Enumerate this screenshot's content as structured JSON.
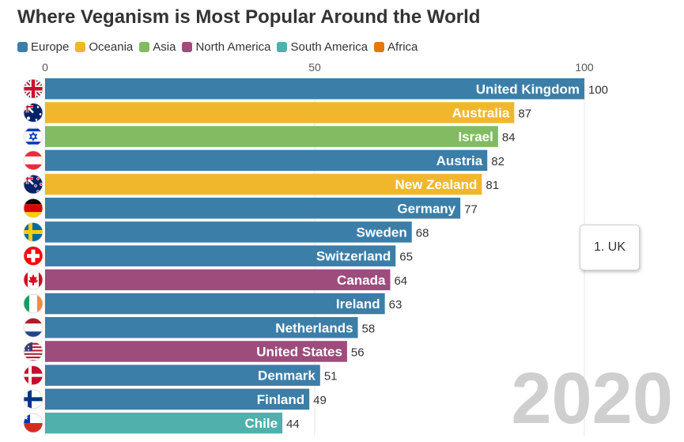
{
  "colors": {
    "Europe": "#3b7ea8",
    "Oceania": "#f1b72c",
    "Asia": "#82bb61",
    "North America": "#9e4c7c",
    "South America": "#4fb0ac",
    "Africa": "#e2780d"
  },
  "tooltip": "1. UK",
  "year": "2020",
  "chart_data": {
    "type": "bar",
    "orientation": "horizontal",
    "title": "Where Veganism is Most Popular Around the World",
    "legend": [
      "Europe",
      "Oceania",
      "Asia",
      "North America",
      "South America",
      "Africa"
    ],
    "xlim": [
      0,
      100
    ],
    "ticks": [
      0,
      50,
      100
    ],
    "bars": [
      {
        "name": "United Kingdom",
        "value": 100,
        "region": "Europe",
        "flag": "gb-flag-icon"
      },
      {
        "name": "Australia",
        "value": 87,
        "region": "Oceania",
        "flag": "au-flag-icon"
      },
      {
        "name": "Israel",
        "value": 84,
        "region": "Asia",
        "flag": "il-flag-icon"
      },
      {
        "name": "Austria",
        "value": 82,
        "region": "Europe",
        "flag": "at-flag-icon"
      },
      {
        "name": "New Zealand",
        "value": 81,
        "region": "Oceania",
        "flag": "nz-flag-icon"
      },
      {
        "name": "Germany",
        "value": 77,
        "region": "Europe",
        "flag": "de-flag-icon"
      },
      {
        "name": "Sweden",
        "value": 68,
        "region": "Europe",
        "flag": "se-flag-icon"
      },
      {
        "name": "Switzerland",
        "value": 65,
        "region": "Europe",
        "flag": "ch-flag-icon"
      },
      {
        "name": "Canada",
        "value": 64,
        "region": "North America",
        "flag": "ca-flag-icon"
      },
      {
        "name": "Ireland",
        "value": 63,
        "region": "Europe",
        "flag": "ie-flag-icon"
      },
      {
        "name": "Netherlands",
        "value": 58,
        "region": "Europe",
        "flag": "nl-flag-icon"
      },
      {
        "name": "United States",
        "value": 56,
        "region": "North America",
        "flag": "us-flag-icon"
      },
      {
        "name": "Denmark",
        "value": 51,
        "region": "Europe",
        "flag": "dk-flag-icon"
      },
      {
        "name": "Finland",
        "value": 49,
        "region": "Europe",
        "flag": "fi-flag-icon"
      },
      {
        "name": "Chile",
        "value": 44,
        "region": "South America",
        "flag": "cl-flag-icon"
      }
    ]
  }
}
